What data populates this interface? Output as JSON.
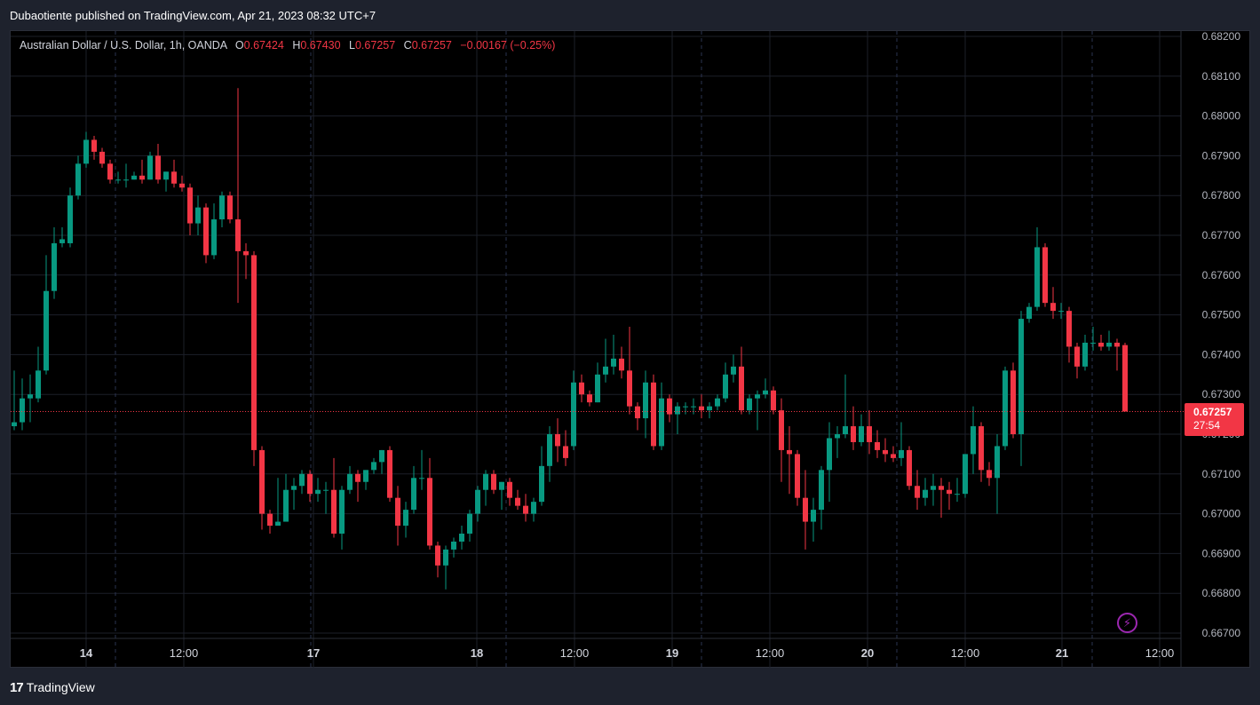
{
  "header": {
    "publisher_text": "Dubaotiente published on TradingView.com, Apr 21, 2023 08:32 UTC+7"
  },
  "legend": {
    "symbol": "Australian Dollar / U.S. Dollar, 1h, OANDA",
    "o_label": "O",
    "o_value": "0.67424",
    "h_label": "H",
    "h_value": "0.67430",
    "l_label": "L",
    "l_value": "0.67257",
    "c_label": "C",
    "c_value": "0.67257",
    "change": "−0.00167 (−0.25%)"
  },
  "price_tag": {
    "price": "0.67257",
    "countdown": "27:54"
  },
  "footer": {
    "logo_mark": "17",
    "logo_text": "TradingView"
  },
  "colors": {
    "up": "#089981",
    "down": "#f23645",
    "grid": "#1c1f29",
    "background": "#000000"
  },
  "icons": {
    "alert": "lightning-bolt-icon"
  },
  "chart_data": {
    "type": "candlestick",
    "y_axis_labels": [
      "0.68200",
      "0.68100",
      "0.68000",
      "0.67900",
      "0.67800",
      "0.67700",
      "0.67600",
      "0.67500",
      "0.67400",
      "0.67300",
      "0.67200",
      "0.67100",
      "0.67000",
      "0.66900",
      "0.66800",
      "0.66700"
    ],
    "x_axis_labels": [
      "14",
      "12:00",
      "17",
      "18",
      "12:00",
      "19",
      "12:00",
      "20",
      "12:00",
      "21",
      "12:00"
    ],
    "ylim": [
      0.667,
      0.682
    ],
    "current_price": 0.67257,
    "candles": [
      {
        "o": 0.6722,
        "h": 0.6736,
        "l": 0.6721,
        "c": 0.6723
      },
      {
        "o": 0.6723,
        "h": 0.6734,
        "l": 0.6721,
        "c": 0.6729
      },
      {
        "o": 0.6729,
        "h": 0.6735,
        "l": 0.6723,
        "c": 0.673
      },
      {
        "o": 0.6729,
        "h": 0.6742,
        "l": 0.6728,
        "c": 0.6736
      },
      {
        "o": 0.6736,
        "h": 0.6765,
        "l": 0.6735,
        "c": 0.6756
      },
      {
        "o": 0.6756,
        "h": 0.6772,
        "l": 0.6754,
        "c": 0.6768
      },
      {
        "o": 0.6768,
        "h": 0.6772,
        "l": 0.6767,
        "c": 0.6769
      },
      {
        "o": 0.6768,
        "h": 0.6782,
        "l": 0.6767,
        "c": 0.678
      },
      {
        "o": 0.678,
        "h": 0.679,
        "l": 0.6779,
        "c": 0.6788
      },
      {
        "o": 0.6788,
        "h": 0.6796,
        "l": 0.6787,
        "c": 0.6794
      },
      {
        "o": 0.6794,
        "h": 0.6795,
        "l": 0.6789,
        "c": 0.6791
      },
      {
        "o": 0.6791,
        "h": 0.6792,
        "l": 0.6787,
        "c": 0.6788
      },
      {
        "o": 0.6788,
        "h": 0.6789,
        "l": 0.6783,
        "c": 0.6784
      },
      {
        "o": 0.6784,
        "h": 0.6786,
        "l": 0.6783,
        "c": 0.6784
      },
      {
        "o": 0.6784,
        "h": 0.6788,
        "l": 0.6782,
        "c": 0.6784
      },
      {
        "o": 0.6784,
        "h": 0.6786,
        "l": 0.6784,
        "c": 0.6785
      },
      {
        "o": 0.6785,
        "h": 0.6789,
        "l": 0.6783,
        "c": 0.6784
      },
      {
        "o": 0.6784,
        "h": 0.6791,
        "l": 0.6784,
        "c": 0.679
      },
      {
        "o": 0.679,
        "h": 0.6793,
        "l": 0.6783,
        "c": 0.6784
      },
      {
        "o": 0.6784,
        "h": 0.6786,
        "l": 0.6781,
        "c": 0.6786
      },
      {
        "o": 0.6786,
        "h": 0.6789,
        "l": 0.6782,
        "c": 0.6783
      },
      {
        "o": 0.6783,
        "h": 0.6785,
        "l": 0.6781,
        "c": 0.6782
      },
      {
        "o": 0.6782,
        "h": 0.6783,
        "l": 0.677,
        "c": 0.6773
      },
      {
        "o": 0.6773,
        "h": 0.678,
        "l": 0.677,
        "c": 0.6777
      },
      {
        "o": 0.6777,
        "h": 0.6778,
        "l": 0.6763,
        "c": 0.6765
      },
      {
        "o": 0.6765,
        "h": 0.6778,
        "l": 0.6764,
        "c": 0.6774
      },
      {
        "o": 0.6774,
        "h": 0.6781,
        "l": 0.6772,
        "c": 0.678
      },
      {
        "o": 0.678,
        "h": 0.6781,
        "l": 0.6773,
        "c": 0.6774
      },
      {
        "o": 0.6774,
        "h": 0.6807,
        "l": 0.6753,
        "c": 0.6766
      },
      {
        "o": 0.6766,
        "h": 0.6768,
        "l": 0.6759,
        "c": 0.6765
      },
      {
        "o": 0.6765,
        "h": 0.6766,
        "l": 0.6712,
        "c": 0.6716
      },
      {
        "o": 0.6716,
        "h": 0.6717,
        "l": 0.6696,
        "c": 0.67
      },
      {
        "o": 0.67,
        "h": 0.6701,
        "l": 0.6695,
        "c": 0.6697
      },
      {
        "o": 0.6697,
        "h": 0.6709,
        "l": 0.6697,
        "c": 0.6698
      },
      {
        "o": 0.6698,
        "h": 0.671,
        "l": 0.6698,
        "c": 0.6706
      },
      {
        "o": 0.6706,
        "h": 0.6709,
        "l": 0.6701,
        "c": 0.6707
      },
      {
        "o": 0.6707,
        "h": 0.6711,
        "l": 0.6705,
        "c": 0.671
      },
      {
        "o": 0.671,
        "h": 0.6711,
        "l": 0.6703,
        "c": 0.6705
      },
      {
        "o": 0.6705,
        "h": 0.6709,
        "l": 0.6703,
        "c": 0.6706
      },
      {
        "o": 0.6706,
        "h": 0.6708,
        "l": 0.67,
        "c": 0.6706
      },
      {
        "o": 0.6706,
        "h": 0.6714,
        "l": 0.6694,
        "c": 0.6695
      },
      {
        "o": 0.6695,
        "h": 0.6707,
        "l": 0.6691,
        "c": 0.6706
      },
      {
        "o": 0.6706,
        "h": 0.6712,
        "l": 0.6705,
        "c": 0.671
      },
      {
        "o": 0.671,
        "h": 0.6711,
        "l": 0.6703,
        "c": 0.6708
      },
      {
        "o": 0.6708,
        "h": 0.6711,
        "l": 0.6706,
        "c": 0.6711
      },
      {
        "o": 0.6711,
        "h": 0.6714,
        "l": 0.671,
        "c": 0.6713
      },
      {
        "o": 0.6713,
        "h": 0.6716,
        "l": 0.671,
        "c": 0.6716
      },
      {
        "o": 0.6716,
        "h": 0.6717,
        "l": 0.6703,
        "c": 0.6704
      },
      {
        "o": 0.6704,
        "h": 0.6707,
        "l": 0.6692,
        "c": 0.6697
      },
      {
        "o": 0.6697,
        "h": 0.6703,
        "l": 0.6694,
        "c": 0.6701
      },
      {
        "o": 0.6701,
        "h": 0.6712,
        "l": 0.67,
        "c": 0.6709
      },
      {
        "o": 0.6709,
        "h": 0.6716,
        "l": 0.6706,
        "c": 0.6709
      },
      {
        "o": 0.6709,
        "h": 0.6714,
        "l": 0.6691,
        "c": 0.6692
      },
      {
        "o": 0.6692,
        "h": 0.6693,
        "l": 0.6684,
        "c": 0.6687
      },
      {
        "o": 0.6687,
        "h": 0.6692,
        "l": 0.6681,
        "c": 0.6691
      },
      {
        "o": 0.6691,
        "h": 0.6694,
        "l": 0.6689,
        "c": 0.6693
      },
      {
        "o": 0.6693,
        "h": 0.6697,
        "l": 0.6691,
        "c": 0.6695
      },
      {
        "o": 0.6695,
        "h": 0.6701,
        "l": 0.6693,
        "c": 0.67
      },
      {
        "o": 0.67,
        "h": 0.6707,
        "l": 0.6698,
        "c": 0.6706
      },
      {
        "o": 0.6706,
        "h": 0.6711,
        "l": 0.6702,
        "c": 0.671
      },
      {
        "o": 0.671,
        "h": 0.6711,
        "l": 0.6705,
        "c": 0.6706
      },
      {
        "o": 0.6706,
        "h": 0.6708,
        "l": 0.6701,
        "c": 0.6708
      },
      {
        "o": 0.6708,
        "h": 0.6709,
        "l": 0.6702,
        "c": 0.6704
      },
      {
        "o": 0.6704,
        "h": 0.6706,
        "l": 0.6701,
        "c": 0.6702
      },
      {
        "o": 0.6702,
        "h": 0.6705,
        "l": 0.6698,
        "c": 0.67
      },
      {
        "o": 0.67,
        "h": 0.6704,
        "l": 0.6698,
        "c": 0.6703
      },
      {
        "o": 0.6703,
        "h": 0.6717,
        "l": 0.6702,
        "c": 0.6712
      },
      {
        "o": 0.6712,
        "h": 0.6722,
        "l": 0.6708,
        "c": 0.672
      },
      {
        "o": 0.672,
        "h": 0.6724,
        "l": 0.6713,
        "c": 0.6717
      },
      {
        "o": 0.6717,
        "h": 0.6721,
        "l": 0.6712,
        "c": 0.6714
      },
      {
        "o": 0.6717,
        "h": 0.6736,
        "l": 0.6716,
        "c": 0.6733
      },
      {
        "o": 0.6733,
        "h": 0.6735,
        "l": 0.6728,
        "c": 0.673
      },
      {
        "o": 0.673,
        "h": 0.6731,
        "l": 0.6727,
        "c": 0.6728
      },
      {
        "o": 0.6728,
        "h": 0.6738,
        "l": 0.6728,
        "c": 0.6735
      },
      {
        "o": 0.6735,
        "h": 0.6744,
        "l": 0.6733,
        "c": 0.6737
      },
      {
        "o": 0.6737,
        "h": 0.6745,
        "l": 0.6735,
        "c": 0.6739
      },
      {
        "o": 0.6739,
        "h": 0.6742,
        "l": 0.6734,
        "c": 0.6736
      },
      {
        "o": 0.6736,
        "h": 0.6747,
        "l": 0.6725,
        "c": 0.6727
      },
      {
        "o": 0.6727,
        "h": 0.6728,
        "l": 0.6721,
        "c": 0.6724
      },
      {
        "o": 0.6724,
        "h": 0.6736,
        "l": 0.6719,
        "c": 0.6733
      },
      {
        "o": 0.6733,
        "h": 0.6735,
        "l": 0.6716,
        "c": 0.6717
      },
      {
        "o": 0.6717,
        "h": 0.6733,
        "l": 0.6716,
        "c": 0.6729
      },
      {
        "o": 0.6729,
        "h": 0.673,
        "l": 0.6723,
        "c": 0.6725
      },
      {
        "o": 0.6725,
        "h": 0.6728,
        "l": 0.672,
        "c": 0.6727
      },
      {
        "o": 0.6727,
        "h": 0.6728,
        "l": 0.6725,
        "c": 0.6727
      },
      {
        "o": 0.6727,
        "h": 0.6729,
        "l": 0.6725,
        "c": 0.6727
      },
      {
        "o": 0.6727,
        "h": 0.673,
        "l": 0.6724,
        "c": 0.6726
      },
      {
        "o": 0.6726,
        "h": 0.6728,
        "l": 0.6724,
        "c": 0.6727
      },
      {
        "o": 0.6727,
        "h": 0.673,
        "l": 0.6726,
        "c": 0.6729
      },
      {
        "o": 0.6729,
        "h": 0.6738,
        "l": 0.6728,
        "c": 0.6735
      },
      {
        "o": 0.6735,
        "h": 0.674,
        "l": 0.6733,
        "c": 0.6737
      },
      {
        "o": 0.6737,
        "h": 0.6742,
        "l": 0.6725,
        "c": 0.6726
      },
      {
        "o": 0.6726,
        "h": 0.673,
        "l": 0.6725,
        "c": 0.6729
      },
      {
        "o": 0.6729,
        "h": 0.6731,
        "l": 0.6721,
        "c": 0.673
      },
      {
        "o": 0.673,
        "h": 0.6734,
        "l": 0.6729,
        "c": 0.6731
      },
      {
        "o": 0.6731,
        "h": 0.6732,
        "l": 0.6725,
        "c": 0.6726
      },
      {
        "o": 0.6726,
        "h": 0.6729,
        "l": 0.6708,
        "c": 0.6716
      },
      {
        "o": 0.6716,
        "h": 0.6722,
        "l": 0.6705,
        "c": 0.6715
      },
      {
        "o": 0.6715,
        "h": 0.6716,
        "l": 0.6702,
        "c": 0.6704
      },
      {
        "o": 0.6704,
        "h": 0.6711,
        "l": 0.6691,
        "c": 0.6698
      },
      {
        "o": 0.6698,
        "h": 0.6704,
        "l": 0.6693,
        "c": 0.6701
      },
      {
        "o": 0.6701,
        "h": 0.6712,
        "l": 0.6696,
        "c": 0.6711
      },
      {
        "o": 0.6711,
        "h": 0.6723,
        "l": 0.6703,
        "c": 0.6719
      },
      {
        "o": 0.6719,
        "h": 0.6722,
        "l": 0.6714,
        "c": 0.672
      },
      {
        "o": 0.672,
        "h": 0.6735,
        "l": 0.6719,
        "c": 0.6722
      },
      {
        "o": 0.6722,
        "h": 0.6727,
        "l": 0.6716,
        "c": 0.6718
      },
      {
        "o": 0.6718,
        "h": 0.6725,
        "l": 0.6717,
        "c": 0.6722
      },
      {
        "o": 0.6722,
        "h": 0.6726,
        "l": 0.6715,
        "c": 0.6718
      },
      {
        "o": 0.6718,
        "h": 0.6721,
        "l": 0.6714,
        "c": 0.6716
      },
      {
        "o": 0.6716,
        "h": 0.6719,
        "l": 0.6713,
        "c": 0.6715
      },
      {
        "o": 0.6715,
        "h": 0.6717,
        "l": 0.6713,
        "c": 0.6714
      },
      {
        "o": 0.6714,
        "h": 0.6723,
        "l": 0.6712,
        "c": 0.6716
      },
      {
        "o": 0.6716,
        "h": 0.6717,
        "l": 0.6706,
        "c": 0.6707
      },
      {
        "o": 0.6707,
        "h": 0.6711,
        "l": 0.6701,
        "c": 0.6704
      },
      {
        "o": 0.6704,
        "h": 0.6709,
        "l": 0.6702,
        "c": 0.6706
      },
      {
        "o": 0.6706,
        "h": 0.671,
        "l": 0.6702,
        "c": 0.6707
      },
      {
        "o": 0.6707,
        "h": 0.6709,
        "l": 0.6699,
        "c": 0.6706
      },
      {
        "o": 0.6706,
        "h": 0.6708,
        "l": 0.6701,
        "c": 0.6705
      },
      {
        "o": 0.6705,
        "h": 0.6709,
        "l": 0.6703,
        "c": 0.6705
      },
      {
        "o": 0.6705,
        "h": 0.6715,
        "l": 0.6704,
        "c": 0.6715
      },
      {
        "o": 0.6715,
        "h": 0.6727,
        "l": 0.671,
        "c": 0.6722
      },
      {
        "o": 0.6722,
        "h": 0.6723,
        "l": 0.6708,
        "c": 0.6711
      },
      {
        "o": 0.6711,
        "h": 0.6713,
        "l": 0.6707,
        "c": 0.6709
      },
      {
        "o": 0.6709,
        "h": 0.672,
        "l": 0.67,
        "c": 0.6717
      },
      {
        "o": 0.6717,
        "h": 0.6737,
        "l": 0.6716,
        "c": 0.6736
      },
      {
        "o": 0.6736,
        "h": 0.6738,
        "l": 0.6719,
        "c": 0.672
      },
      {
        "o": 0.672,
        "h": 0.6751,
        "l": 0.6712,
        "c": 0.6749
      },
      {
        "o": 0.6749,
        "h": 0.6753,
        "l": 0.6748,
        "c": 0.6752
      },
      {
        "o": 0.6752,
        "h": 0.6772,
        "l": 0.6751,
        "c": 0.6767
      },
      {
        "o": 0.6767,
        "h": 0.6768,
        "l": 0.6752,
        "c": 0.6753
      },
      {
        "o": 0.6753,
        "h": 0.6757,
        "l": 0.6749,
        "c": 0.6751
      },
      {
        "o": 0.6751,
        "h": 0.6753,
        "l": 0.6749,
        "c": 0.6751
      },
      {
        "o": 0.6751,
        "h": 0.6752,
        "l": 0.6738,
        "c": 0.6742
      },
      {
        "o": 0.6742,
        "h": 0.6743,
        "l": 0.6734,
        "c": 0.6737
      },
      {
        "o": 0.6737,
        "h": 0.6745,
        "l": 0.6736,
        "c": 0.6743
      },
      {
        "o": 0.6743,
        "h": 0.6747,
        "l": 0.6741,
        "c": 0.6743
      },
      {
        "o": 0.6743,
        "h": 0.6745,
        "l": 0.6741,
        "c": 0.6742
      },
      {
        "o": 0.6742,
        "h": 0.6746,
        "l": 0.6741,
        "c": 0.6743
      },
      {
        "o": 0.6743,
        "h": 0.6744,
        "l": 0.6736,
        "c": 0.6742
      },
      {
        "o": 0.67424,
        "h": 0.6743,
        "l": 0.67257,
        "c": 0.67257
      }
    ]
  }
}
